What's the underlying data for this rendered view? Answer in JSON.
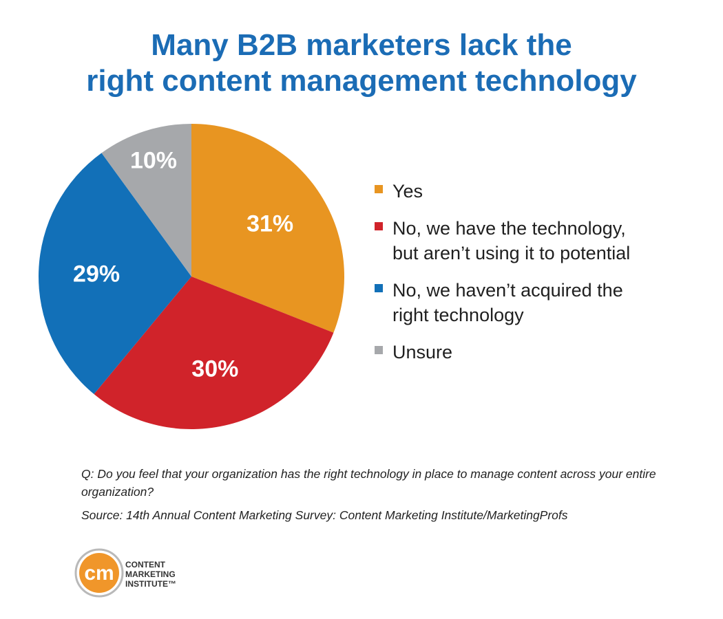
{
  "chart_data": {
    "type": "pie",
    "title": "Many B2B marketers lack the right content management technology",
    "slices": [
      {
        "label": "Yes",
        "value": 31,
        "display": "31%",
        "color": "#e89521"
      },
      {
        "label": "No, we have the technology,\nbut aren’t using it to potential",
        "value": 30,
        "display": "30%",
        "color": "#d0232a"
      },
      {
        "label": "No, we haven’t acquired the\nright technology",
        "value": 29,
        "display": "29%",
        "color": "#1270b8"
      },
      {
        "label": "Unsure",
        "value": 10,
        "display": "10%",
        "color": "#a6a8ab"
      }
    ],
    "legend_position": "right"
  },
  "header": {
    "title_line1": "Many B2B marketers lack the",
    "title_line2": "right content management technology"
  },
  "footnote": {
    "question": "Q: Do you feel that your organization has the right technology in place to manage content across your entire organization?",
    "source": "Source: 14th Annual Content Marketing Survey: Content Marketing Institute/MarketingProfs"
  },
  "logo": {
    "mark": "cm",
    "line1": "CONTENT",
    "line2": "MARKETING",
    "line3": "INSTITUTE™"
  },
  "colors": {
    "title": "#1b6cb5",
    "logo_orange": "#f0962a",
    "logo_ring": "#b9b9b9"
  }
}
